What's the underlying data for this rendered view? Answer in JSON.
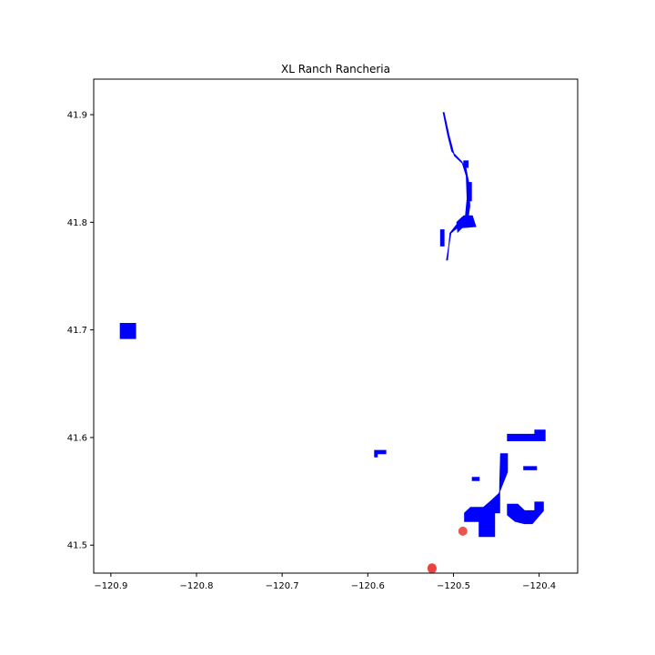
{
  "chart_data": {
    "type": "map",
    "title": "XL Ranch Rancheria",
    "xlabel": "",
    "ylabel": "",
    "xlim": [
      -120.92,
      -120.355
    ],
    "ylim": [
      41.474,
      41.933
    ],
    "x_ticks": [
      {
        "value": -120.9,
        "label": "−120.9"
      },
      {
        "value": -120.8,
        "label": "−120.8"
      },
      {
        "value": -120.7,
        "label": "−120.7"
      },
      {
        "value": -120.6,
        "label": "−120.6"
      },
      {
        "value": -120.5,
        "label": "−120.5"
      },
      {
        "value": -120.4,
        "label": "−120.4"
      }
    ],
    "y_ticks": [
      {
        "value": 41.5,
        "label": "41.5"
      },
      {
        "value": 41.6,
        "label": "41.6"
      },
      {
        "value": 41.7,
        "label": "41.7"
      },
      {
        "value": 41.8,
        "label": "41.8"
      },
      {
        "value": 41.9,
        "label": "41.9"
      }
    ],
    "grid": false,
    "fill_color": "#0000ff",
    "point_color": "#e8413e",
    "polygons": [
      {
        "name": "west-parcel",
        "coords": [
          [
            -120.889,
            41.706
          ],
          [
            -120.871,
            41.706
          ],
          [
            -120.871,
            41.692
          ],
          [
            -120.889,
            41.692
          ]
        ]
      },
      {
        "name": "small-parcel",
        "coords": [
          [
            -120.592,
            41.588
          ],
          [
            -120.579,
            41.588
          ],
          [
            -120.579,
            41.585
          ],
          [
            -120.589,
            41.585
          ],
          [
            -120.589,
            41.582
          ],
          [
            -120.592,
            41.582
          ]
        ]
      },
      {
        "name": "north-strip-1",
        "coords": [
          [
            -120.515,
            41.793
          ],
          [
            -120.511,
            41.793
          ],
          [
            -120.511,
            41.778
          ],
          [
            -120.515,
            41.778
          ]
        ]
      },
      {
        "name": "north-strip-2",
        "coords": [
          [
            -120.496,
            41.8
          ],
          [
            -120.488,
            41.806
          ],
          [
            -120.478,
            41.806
          ],
          [
            -120.474,
            41.796
          ],
          [
            -120.49,
            41.795
          ],
          [
            -120.495,
            41.791
          ]
        ]
      },
      {
        "name": "north-strip-3",
        "coords": [
          [
            -120.483,
            41.837
          ],
          [
            -120.479,
            41.837
          ],
          [
            -120.479,
            41.82
          ],
          [
            -120.483,
            41.82
          ]
        ]
      },
      {
        "name": "north-strip-4",
        "coords": [
          [
            -120.488,
            41.857
          ],
          [
            -120.483,
            41.857
          ],
          [
            -120.483,
            41.851
          ],
          [
            -120.488,
            41.851
          ]
        ]
      },
      {
        "name": "river",
        "coords": [
          [
            -120.511,
            41.902
          ],
          [
            -120.505,
            41.88
          ],
          [
            -120.499,
            41.862
          ],
          [
            -120.486,
            41.852
          ],
          [
            -120.482,
            41.836
          ],
          [
            -120.481,
            41.815
          ],
          [
            -120.483,
            41.804
          ],
          [
            -120.494,
            41.796
          ],
          [
            -120.503,
            41.79
          ],
          [
            -120.508,
            41.765
          ],
          [
            -120.507,
            41.765
          ],
          [
            -120.504,
            41.79
          ],
          [
            -120.496,
            41.798
          ],
          [
            -120.486,
            41.806
          ],
          [
            -120.484,
            41.822
          ],
          [
            -120.485,
            41.843
          ],
          [
            -120.49,
            41.856
          ],
          [
            -120.502,
            41.866
          ],
          [
            -120.507,
            41.882
          ],
          [
            -120.512,
            41.902
          ]
        ]
      },
      {
        "name": "se-main",
        "coords": [
          [
            -120.487,
            41.522
          ],
          [
            -120.47,
            41.522
          ],
          [
            -120.47,
            41.508
          ],
          [
            -120.452,
            41.508
          ],
          [
            -120.452,
            41.53
          ],
          [
            -120.446,
            41.53
          ],
          [
            -120.446,
            41.555
          ],
          [
            -120.445,
            41.585
          ],
          [
            -120.437,
            41.585
          ],
          [
            -120.437,
            41.568
          ],
          [
            -120.441,
            41.56
          ],
          [
            -120.447,
            41.548
          ],
          [
            -120.455,
            41.542
          ],
          [
            -120.465,
            41.535
          ],
          [
            -120.48,
            41.535
          ],
          [
            -120.487,
            41.53
          ]
        ]
      },
      {
        "name": "se-east",
        "coords": [
          [
            -120.437,
            41.538
          ],
          [
            -120.425,
            41.538
          ],
          [
            -120.417,
            41.532
          ],
          [
            -120.405,
            41.532
          ],
          [
            -120.405,
            41.54
          ],
          [
            -120.395,
            41.54
          ],
          [
            -120.395,
            41.532
          ],
          [
            -120.408,
            41.52
          ],
          [
            -120.417,
            41.52
          ],
          [
            -120.428,
            41.522
          ],
          [
            -120.437,
            41.528
          ]
        ]
      },
      {
        "name": "ne-parcel",
        "coords": [
          [
            -120.437,
            41.603
          ],
          [
            -120.405,
            41.603
          ],
          [
            -120.405,
            41.607
          ],
          [
            -120.393,
            41.607
          ],
          [
            -120.393,
            41.597
          ],
          [
            -120.437,
            41.597
          ]
        ]
      },
      {
        "name": "ne-strip",
        "coords": [
          [
            -120.418,
            41.573
          ],
          [
            -120.403,
            41.573
          ],
          [
            -120.403,
            41.57
          ],
          [
            -120.418,
            41.57
          ]
        ]
      },
      {
        "name": "mid-strip",
        "coords": [
          [
            -120.478,
            41.563
          ],
          [
            -120.47,
            41.563
          ],
          [
            -120.47,
            41.56
          ],
          [
            -120.478,
            41.56
          ]
        ]
      }
    ],
    "points": [
      {
        "name": "point-1",
        "x": -120.489,
        "y": 41.513
      },
      {
        "name": "point-2",
        "x": -120.525,
        "y": 41.479
      },
      {
        "name": "point-3",
        "x": -120.525,
        "y": 41.478
      }
    ]
  }
}
